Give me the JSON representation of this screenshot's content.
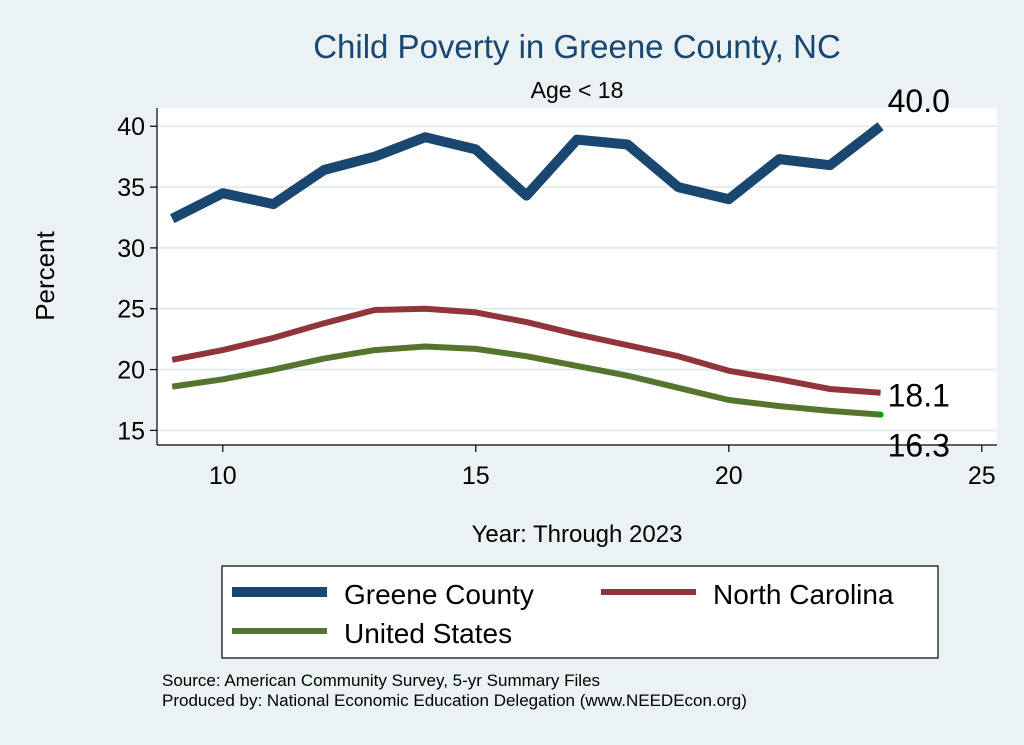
{
  "chart_data": {
    "type": "line",
    "title": "Child Poverty in Greene County, NC",
    "subtitle": "Age < 18",
    "xlabel": "Year: Through 2023",
    "ylabel": "Percent",
    "xlim": [
      8.7,
      25.3
    ],
    "ylim": [
      13.8,
      41.5
    ],
    "xticks": [
      10,
      15,
      20,
      25
    ],
    "yticks": [
      15,
      20,
      25,
      30,
      35,
      40
    ],
    "grid": true,
    "legend_position": "bottom",
    "x": [
      9,
      10,
      11,
      12,
      13,
      14,
      15,
      16,
      17,
      18,
      19,
      20,
      21,
      22,
      23
    ],
    "series": [
      {
        "name": "Greene County",
        "color": "#1a476f",
        "line_weight": "thick",
        "values": [
          32.4,
          34.5,
          33.6,
          36.4,
          37.5,
          39.1,
          38.1,
          34.3,
          38.9,
          38.5,
          35.0,
          34.0,
          37.3,
          36.8,
          40.0
        ],
        "end_label": "40.0"
      },
      {
        "name": "North Carolina",
        "color": "#90353b",
        "line_weight": "medium",
        "values": [
          20.8,
          21.6,
          22.6,
          23.8,
          24.9,
          25.0,
          24.7,
          23.9,
          22.9,
          22.0,
          21.1,
          19.9,
          19.2,
          18.4,
          18.1
        ],
        "end_label": "18.1"
      },
      {
        "name": "United States",
        "color": "#55752f",
        "line_weight": "medium",
        "values": [
          18.6,
          19.2,
          20.0,
          20.9,
          21.6,
          21.9,
          21.7,
          21.1,
          20.3,
          19.5,
          18.5,
          17.5,
          17.0,
          16.6,
          16.3
        ],
        "end_label": "16.3"
      }
    ]
  },
  "notes": {
    "source": "Source: American Community Survey, 5-yr Summary Files",
    "produced": "Produced by: National Economic Education Delegation (www.NEEDEcon.org)"
  }
}
